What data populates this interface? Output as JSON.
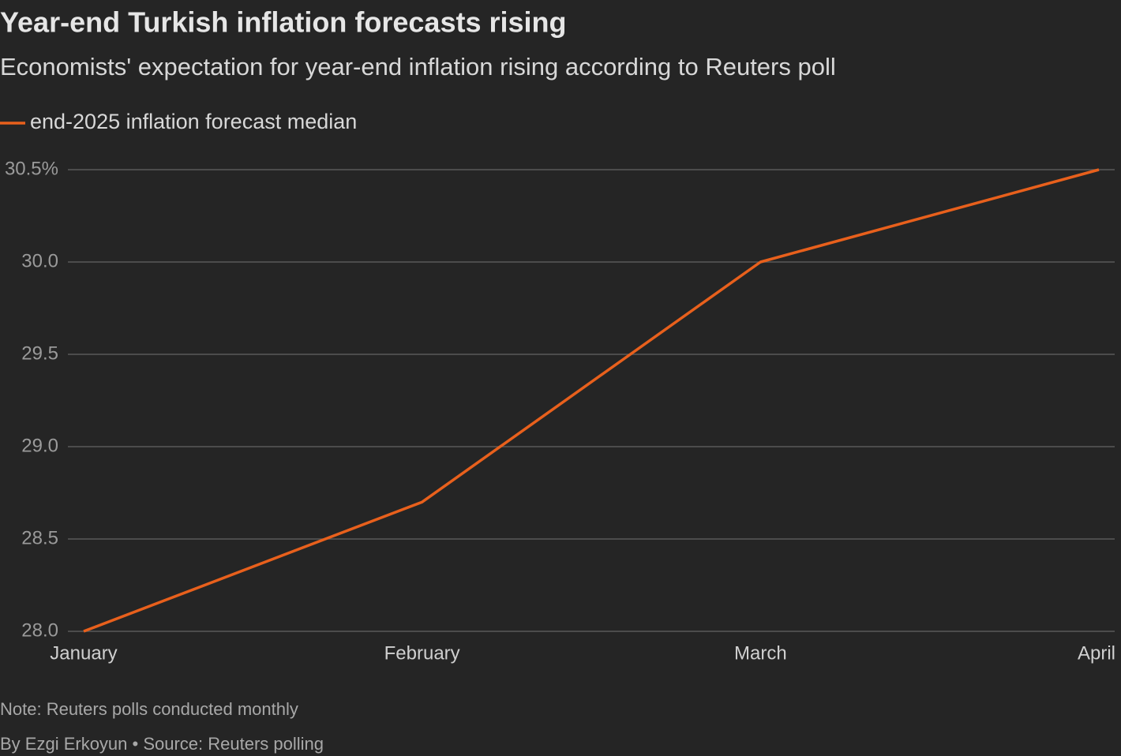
{
  "chart_data": {
    "type": "line",
    "title": "Year-end Turkish inflation forecasts rising",
    "subtitle": "Economists' expectation for year-end inflation rising according to Reuters poll",
    "categories": [
      "January",
      "February",
      "March",
      "April"
    ],
    "series": [
      {
        "name": "end-2025 inflation forecast median",
        "color": "#e8601c",
        "values": [
          28.0,
          28.7,
          30.0,
          30.5
        ]
      }
    ],
    "ylim": [
      28,
      30.5
    ],
    "yticks": [
      {
        "value": 28,
        "label": "28.0"
      },
      28.5,
      {
        "value": 29,
        "label": "29.0"
      },
      29.5,
      {
        "value": 30,
        "label": "30.0"
      },
      {
        "value": 30.5,
        "label": "30.5%"
      }
    ],
    "grid": true,
    "note": "Note: Reuters polls conducted monthly",
    "source": "By Ezgi Erkoyun • Source: Reuters polling"
  }
}
